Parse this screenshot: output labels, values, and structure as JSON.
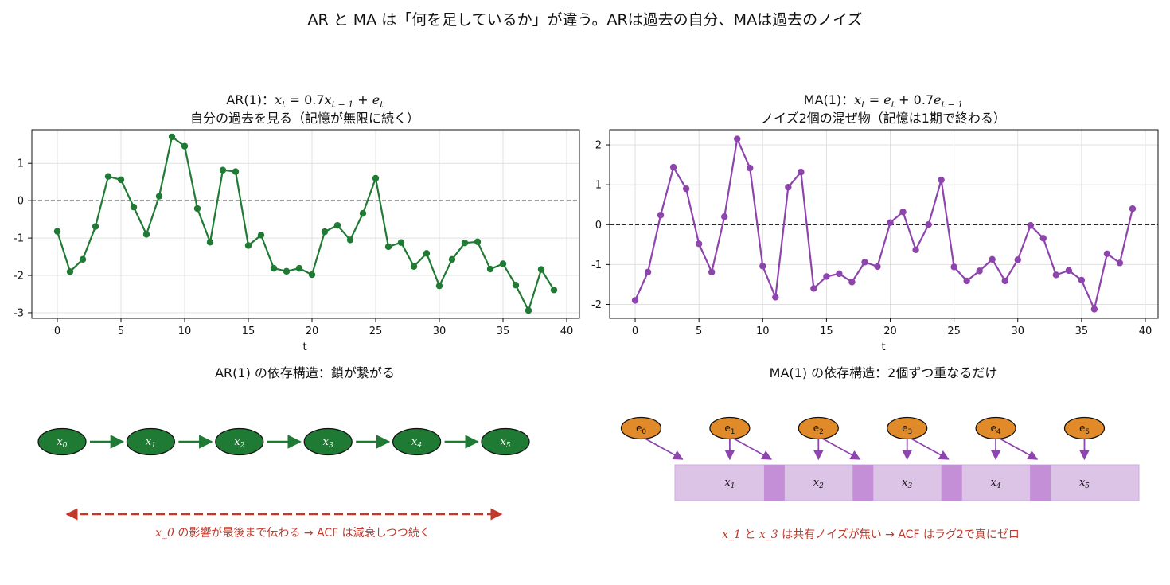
{
  "figure": {
    "title": "AR と MA は「何を足しているか」が違う。ARは過去の自分、MAは過去のノイズ"
  },
  "colors": {
    "ar_green": "#1f7a34",
    "ma_purple": "#8e44ad",
    "noise_orange": "#e08a2a",
    "block_fill": "#dcc4e6",
    "overlap_fill": "#c48fd6",
    "annot_red": "#c0392b"
  },
  "chart_data": [
    {
      "type": "line",
      "title_prefix": "AR(1)：",
      "title_formula": "x_t = 0.7x_{t-1} + e_t",
      "subtitle": "自分の過去を見る（記憶が無限に続く）",
      "xlabel": "t",
      "ylabel": "",
      "xlim": [
        -2,
        41
      ],
      "ylim": [
        -3.15,
        1.9
      ],
      "xticks": [
        0,
        5,
        10,
        15,
        20,
        25,
        30,
        35,
        40
      ],
      "yticks": [
        -3,
        -2,
        -1,
        0,
        1
      ],
      "grid": true,
      "reference_line": 0,
      "series": [
        {
          "x": [
            0,
            1,
            2,
            3,
            4,
            5,
            6,
            7,
            8,
            9,
            10,
            11,
            12,
            13,
            14,
            15,
            16,
            17,
            18,
            19,
            20,
            21,
            22,
            23,
            24,
            25,
            26,
            27,
            28,
            29,
            30,
            31,
            32,
            33,
            34,
            35,
            36,
            37,
            38,
            39
          ],
          "values": [
            -0.82,
            -1.9,
            -1.57,
            -0.69,
            0.65,
            0.56,
            -0.17,
            -0.9,
            0.12,
            1.71,
            1.46,
            -0.21,
            -1.11,
            0.82,
            0.78,
            -1.2,
            -0.92,
            -1.81,
            -1.89,
            -1.81,
            -1.98,
            -0.83,
            -0.66,
            -1.05,
            -0.34,
            0.6,
            -1.23,
            -1.12,
            -1.76,
            -1.41,
            -2.28,
            -1.57,
            -1.13,
            -1.1,
            -1.83,
            -1.69,
            -2.26,
            -2.94,
            -1.84,
            -2.39
          ]
        }
      ]
    },
    {
      "type": "line",
      "title_prefix": "MA(1)：",
      "title_formula": "x_t = e_t + 0.7e_{t-1}",
      "subtitle": "ノイズ2個の混ぜ物（記憶は1期で終わる）",
      "xlabel": "t",
      "ylabel": "",
      "xlim": [
        -2,
        41
      ],
      "ylim": [
        -2.35,
        2.38
      ],
      "xticks": [
        0,
        5,
        10,
        15,
        20,
        25,
        30,
        35,
        40
      ],
      "yticks": [
        -2,
        -1,
        0,
        1,
        2
      ],
      "grid": true,
      "reference_line": 0,
      "series": [
        {
          "x": [
            0,
            1,
            2,
            3,
            4,
            5,
            6,
            7,
            8,
            9,
            10,
            11,
            12,
            13,
            14,
            15,
            16,
            17,
            18,
            19,
            20,
            21,
            22,
            23,
            24,
            25,
            26,
            27,
            28,
            29,
            30,
            31,
            32,
            33,
            34,
            35,
            36,
            37,
            38,
            39
          ],
          "values": [
            -1.9,
            -1.19,
            0.24,
            1.44,
            0.9,
            -0.48,
            -1.19,
            0.2,
            2.15,
            1.42,
            -1.04,
            -1.82,
            0.94,
            1.32,
            -1.6,
            -1.3,
            -1.23,
            -1.44,
            -0.94,
            -1.05,
            0.05,
            0.32,
            -0.63,
            0.0,
            1.12,
            -1.06,
            -1.41,
            -1.16,
            -0.87,
            -1.41,
            -0.88,
            -0.02,
            -0.34,
            -1.26,
            -1.15,
            -1.39,
            -2.12,
            -0.73,
            -0.96,
            0.4
          ]
        }
      ]
    }
  ],
  "diagrams": {
    "ar": {
      "title": "AR(1) の依存構造：鎖が繋がる",
      "nodes": [
        "x_0",
        "x_1",
        "x_2",
        "x_3",
        "x_4",
        "x_5"
      ],
      "annotation_var": "x_0",
      "annotation_text": " の影響が最後まで伝わる → ACF は減衰しつつ続く"
    },
    "ma": {
      "title": "MA(1) の依存構造：2個ずつ重なるだけ",
      "noise_nodes": [
        "e_0",
        "e_1",
        "e_2",
        "e_3",
        "e_4",
        "e_5"
      ],
      "blocks": [
        "x_1",
        "x_2",
        "x_3",
        "x_4",
        "x_5"
      ],
      "annotation_var1": "x_1",
      "annotation_mid": " と ",
      "annotation_var2": "x_3",
      "annotation_text": " は共有ノイズが無い → ACF はラグ2で真にゼロ"
    }
  }
}
